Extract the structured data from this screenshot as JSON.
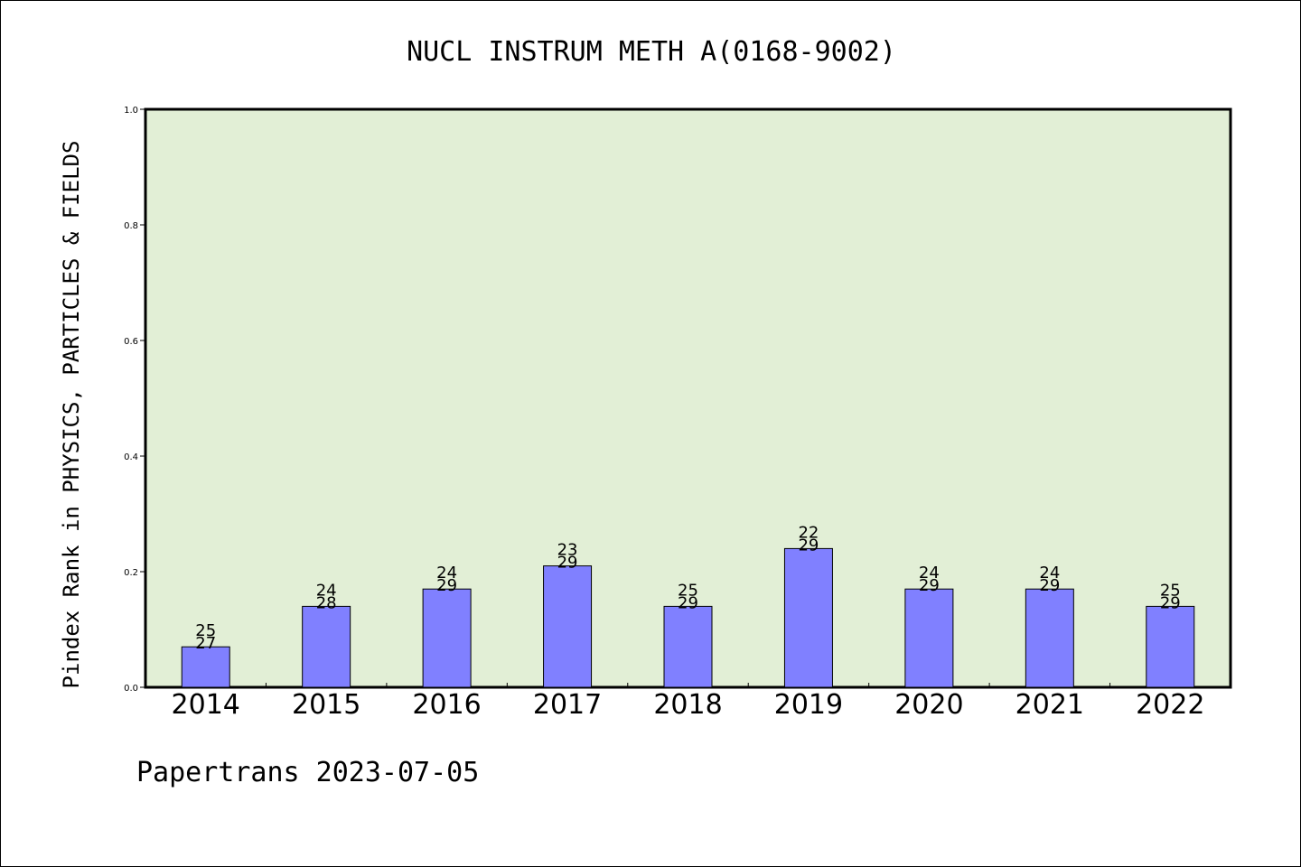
{
  "chart_data": {
    "type": "bar",
    "title": "NUCL INSTRUM METH A(0168-9002)",
    "xlabel": "",
    "ylabel": "Pindex Rank in PHYSICS, PARTICLES & FIELDS",
    "ylim": [
      0,
      1.0
    ],
    "yticks": [
      "0.0",
      "0.2",
      "0.4",
      "0.6",
      "0.8",
      "1.0"
    ],
    "categories": [
      "2014",
      "2015",
      "2016",
      "2017",
      "2018",
      "2019",
      "2020",
      "2021",
      "2022"
    ],
    "values": [
      0.07,
      0.14,
      0.17,
      0.21,
      0.14,
      0.24,
      0.17,
      0.17,
      0.14
    ],
    "rank_labels": [
      "25",
      "24",
      "24",
      "23",
      "25",
      "22",
      "24",
      "24",
      "25"
    ],
    "total_labels": [
      "27",
      "28",
      "29",
      "29",
      "29",
      "29",
      "29",
      "29",
      "29"
    ],
    "grid": false,
    "legend": "none",
    "colors": {
      "bar": "#8080ff",
      "plot_background": "#e2efd6",
      "axis": "#000000"
    }
  },
  "footer": {
    "credit": "Papertrans 2023-07-05"
  }
}
